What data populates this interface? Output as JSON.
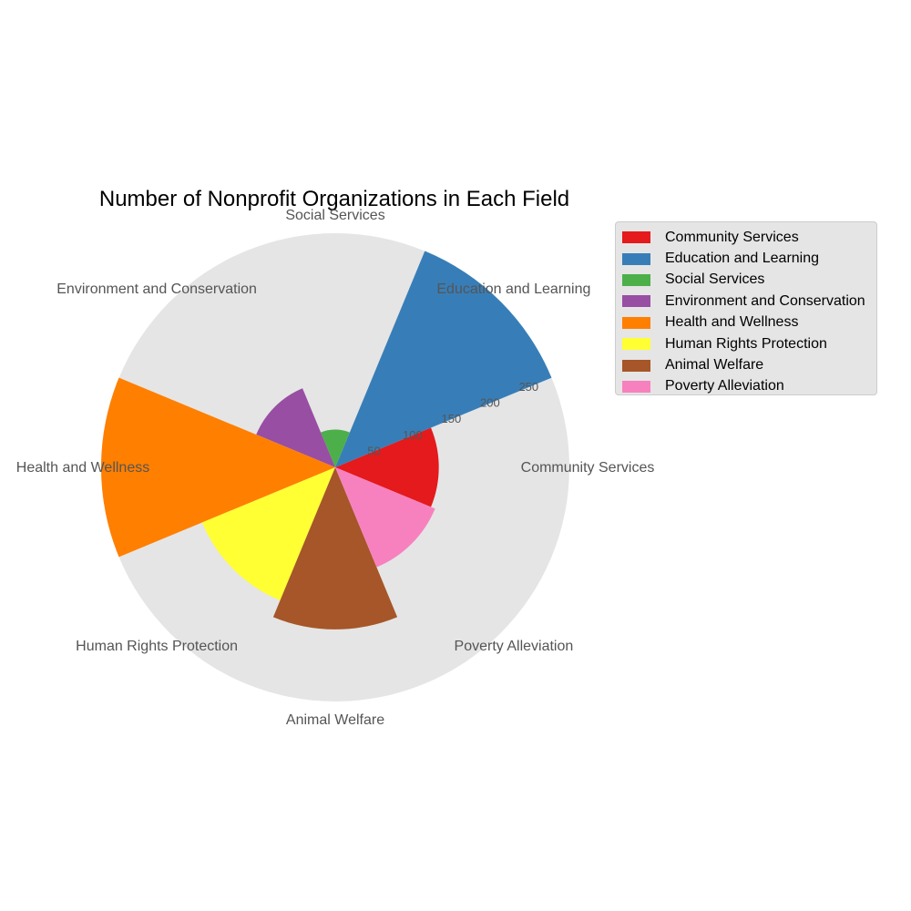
{
  "chart_data": {
    "type": "polar-bar",
    "title": "Number of Nonprofit Organizations in Each Field",
    "categories": [
      "Community Services",
      "Education and Learning",
      "Social Services",
      "Environment and Conservation",
      "Health and Wellness",
      "Human Rights Protection",
      "Animal Welfare",
      "Poverty Alleviation"
    ],
    "values": [
      115,
      265,
      42,
      95,
      260,
      160,
      180,
      120
    ],
    "colors": [
      "#e41a1c",
      "#377eb8",
      "#4daf4a",
      "#984ea3",
      "#ff7f00",
      "#ffff33",
      "#a65628",
      "#f781bf"
    ],
    "rlim": [
      0,
      260
    ],
    "legend_position": "upper-right, outside plot",
    "grid": true,
    "r_tick_labels": [
      "50",
      "100",
      "150",
      "200",
      "250"
    ]
  }
}
